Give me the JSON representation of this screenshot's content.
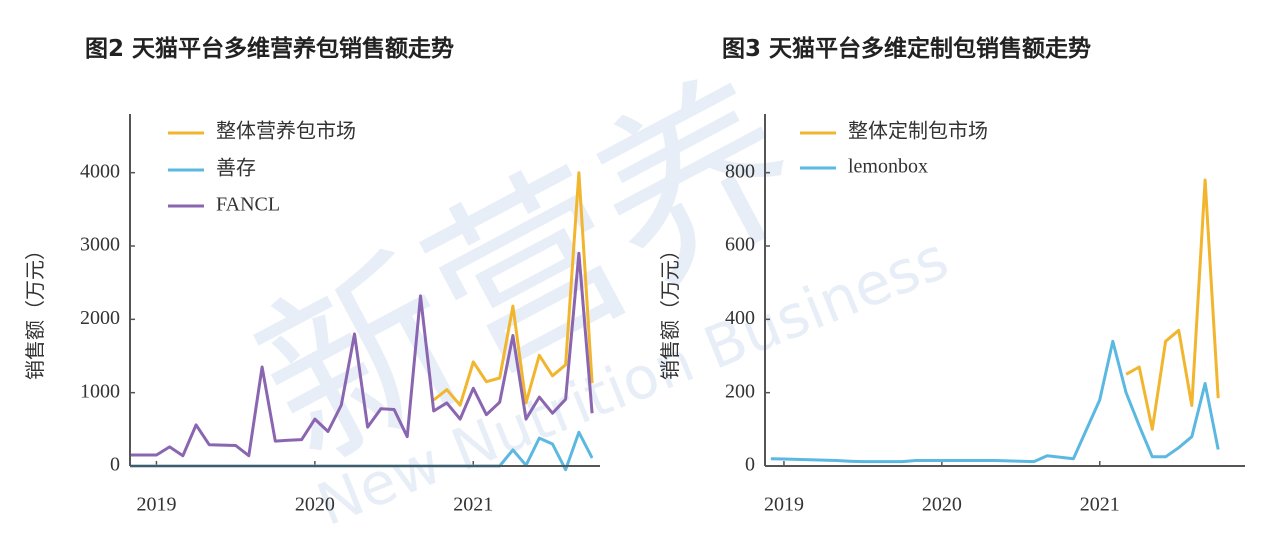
{
  "watermark": {
    "main": "新营养",
    "sub": "New Nutrition Business"
  },
  "chart_data": [
    {
      "type": "line",
      "title": "图2 天猫平台多维营养包销售额走势",
      "y_label": "销售额（万元）",
      "x": [
        2018.833,
        2018.917,
        2019,
        2019.083,
        2019.167,
        2019.25,
        2019.333,
        2019.417,
        2019.5,
        2019.583,
        2019.667,
        2019.75,
        2019.833,
        2019.917,
        2020,
        2020.083,
        2020.167,
        2020.25,
        2020.333,
        2020.417,
        2020.5,
        2020.583,
        2020.667,
        2020.75,
        2020.833,
        2020.917,
        2021,
        2021.083,
        2021.167,
        2021.25,
        2021.333,
        2021.417,
        2021.5,
        2021.583,
        2021.667,
        2021.75
      ],
      "xlim": [
        2018.833,
        2021.8
      ],
      "ylim": [
        0,
        4800
      ],
      "xticks": [
        2019,
        2020,
        2021
      ],
      "yticks": [
        0,
        1000,
        2000,
        3000,
        4000
      ],
      "series": [
        {
          "name": "整体营养包市场",
          "color": "#f2b52e",
          "values": [
            null,
            null,
            null,
            null,
            null,
            null,
            null,
            null,
            null,
            null,
            null,
            null,
            null,
            null,
            null,
            null,
            null,
            null,
            null,
            null,
            null,
            null,
            null,
            900,
            1040,
            830,
            1420,
            1150,
            1200,
            2180,
            860,
            1510,
            1230,
            1380,
            4000,
            1130
          ]
        },
        {
          "name": "善存",
          "color": "#5bb8e0",
          "values": [
            0,
            0,
            0,
            0,
            0,
            0,
            0,
            0,
            0,
            0,
            0,
            0,
            0,
            0,
            0,
            0,
            0,
            0,
            0,
            0,
            0,
            0,
            0,
            0,
            0,
            0,
            0,
            0,
            0,
            220,
            10,
            380,
            300,
            -50,
            460,
            110
          ]
        },
        {
          "name": "FANCL",
          "color": "#8a65b0",
          "values": [
            150,
            150,
            150,
            260,
            140,
            560,
            290,
            285,
            280,
            140,
            1350,
            340,
            350,
            360,
            640,
            470,
            830,
            1800,
            530,
            780,
            770,
            400,
            2320,
            750,
            860,
            640,
            1060,
            700,
            870,
            1780,
            640,
            940,
            720,
            910,
            2900,
            720
          ]
        }
      ]
    },
    {
      "type": "line",
      "title": "图3 天猫平台多维定制包销售额走势",
      "y_label": "销售额（万元）",
      "x": [
        2018.917,
        2019,
        2019.083,
        2019.167,
        2019.25,
        2019.333,
        2019.417,
        2019.5,
        2019.583,
        2019.667,
        2019.75,
        2019.833,
        2019.917,
        2020,
        2020.083,
        2020.167,
        2020.25,
        2020.333,
        2020.417,
        2020.5,
        2020.583,
        2020.667,
        2020.75,
        2020.833,
        2020.917,
        2021,
        2021.083,
        2021.167,
        2021.25,
        2021.333,
        2021.417,
        2021.5,
        2021.583,
        2021.667,
        2021.75
      ],
      "xlim": [
        2018.88,
        2021.92
      ],
      "ylim": [
        0,
        960
      ],
      "xticks": [
        2019,
        2020,
        2021
      ],
      "yticks": [
        0,
        200,
        400,
        600,
        800
      ],
      "series": [
        {
          "name": "整体定制包市场",
          "color": "#f2b52e",
          "values": [
            null,
            null,
            null,
            null,
            null,
            null,
            null,
            null,
            null,
            null,
            null,
            null,
            null,
            null,
            null,
            null,
            null,
            null,
            null,
            null,
            null,
            null,
            null,
            null,
            null,
            null,
            null,
            250,
            270,
            100,
            340,
            370,
            165,
            780,
            185
          ]
        },
        {
          "name": "lemonbox",
          "color": "#5bb8e0",
          "values": [
            20,
            19,
            18,
            17,
            16,
            15,
            13,
            12,
            12,
            12,
            12,
            15,
            15,
            15,
            15,
            15,
            15,
            15,
            14,
            13,
            12,
            28,
            24,
            20,
            100,
            180,
            340,
            200,
            110,
            25,
            25,
            50,
            80,
            225,
            45
          ]
        }
      ]
    }
  ]
}
